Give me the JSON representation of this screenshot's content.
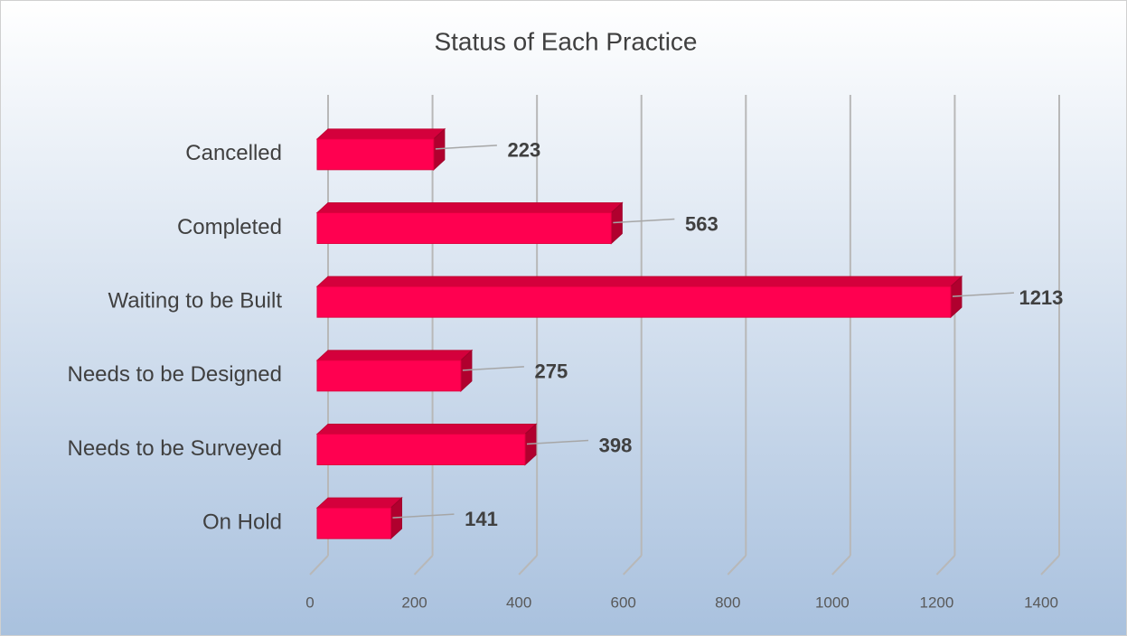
{
  "chart_data": {
    "type": "bar",
    "orientation": "horizontal",
    "title": "Status of Each Practice",
    "categories": [
      "Cancelled",
      "Completed",
      "Waiting to be Built",
      "Needs to be Designed",
      "Needs to be Surveyed",
      "On Hold"
    ],
    "values": [
      223,
      563,
      1213,
      275,
      398,
      141
    ],
    "color": "#ff0050",
    "xlim": [
      0,
      1400
    ],
    "xticks": [
      0,
      200,
      400,
      600,
      800,
      1000,
      1200,
      1400
    ],
    "grid": true
  }
}
